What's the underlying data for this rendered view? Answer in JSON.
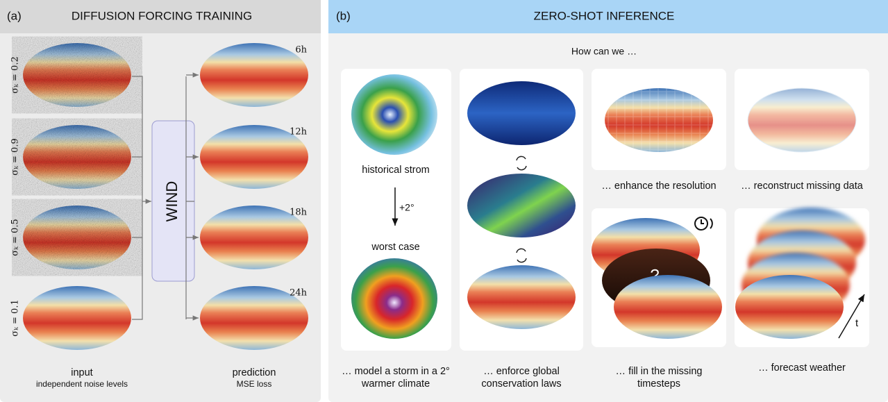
{
  "training": {
    "label": "(a)",
    "title": "DIFFUSION FORCING TRAINING",
    "noise_levels": [
      "σₖ = 0.2",
      "σₖ = 0.9",
      "σₖ = 0.5",
      "σₖ = 0.1"
    ],
    "times": [
      "6h",
      "12h",
      "18h",
      "24h"
    ],
    "model": "WIND",
    "input": "input",
    "input_note": "independent noise levels",
    "prediction": "prediction",
    "prediction_note": "MSE loss"
  },
  "inference": {
    "label": "(b)",
    "title": "ZERO-SHOT INFERENCE",
    "question": "How can we …",
    "storm_top": "historical strom",
    "storm_shift": "+2°",
    "storm_bottom": "worst case",
    "missing_mark": "?",
    "time_axis": "t",
    "captions": [
      [
        "… model a storm in a 2°",
        "warmer climate"
      ],
      [
        "… enforce global",
        "conservation laws"
      ],
      [
        "… enhance the resolution"
      ],
      [
        "… reconstruct missing data"
      ],
      [
        "… fill in the missing",
        "timesteps"
      ],
      [
        "… forecast weather"
      ]
    ]
  }
}
